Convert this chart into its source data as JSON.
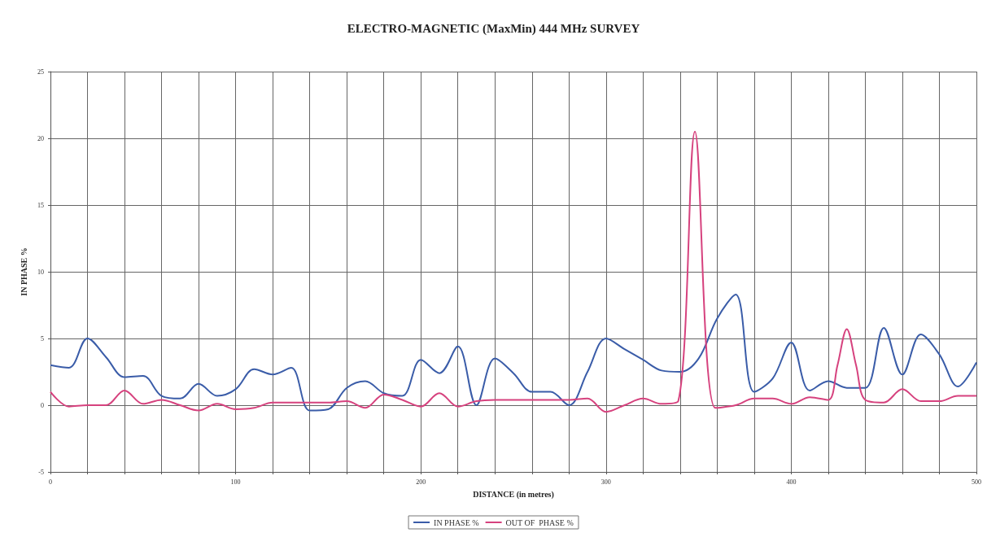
{
  "chart_data": {
    "type": "line",
    "title": "ELECTRO-MAGNETIC (MaxMin) 444 MHz SURVEY",
    "xlabel": "DISTANCE (in metres)",
    "ylabel": "IN PHASE %",
    "x": [
      0,
      10,
      20,
      30,
      40,
      50,
      60,
      70,
      80,
      90,
      100,
      110,
      120,
      130,
      140,
      150,
      160,
      170,
      180,
      190,
      200,
      210,
      220,
      230,
      240,
      250,
      260,
      270,
      280,
      290,
      300,
      310,
      320,
      330,
      340,
      350,
      360,
      370,
      380,
      390,
      400,
      410,
      420,
      430,
      440,
      450,
      460,
      470,
      480,
      490,
      500
    ],
    "series": [
      {
        "name": "IN PHASE %",
        "color": "#3a5ca8",
        "values": [
          3.0,
          2.8,
          5.0,
          3.6,
          2.1,
          2.2,
          0.7,
          0.5,
          1.6,
          0.7,
          1.2,
          2.7,
          2.3,
          2.8,
          -0.4,
          -0.3,
          1.3,
          1.8,
          0.9,
          0.7,
          3.4,
          2.4,
          4.4,
          0.0,
          3.5,
          2.4,
          1.0,
          1.0,
          0.0,
          2.5,
          5.0,
          4.2,
          3.4,
          2.6,
          2.5,
          3.5,
          6.5,
          8.3,
          1.0,
          2.0,
          4.7,
          1.1,
          1.8,
          1.3,
          1.3,
          5.8,
          2.3,
          5.3,
          3.8,
          1.4,
          3.2
        ]
      },
      {
        "name": "OUT OF  PHASE %",
        "color": "#d6427e",
        "x": [
          0,
          10,
          20,
          30,
          40,
          50,
          60,
          70,
          80,
          90,
          100,
          110,
          120,
          130,
          140,
          150,
          160,
          170,
          180,
          190,
          200,
          210,
          220,
          230,
          240,
          250,
          260,
          270,
          280,
          290,
          300,
          310,
          320,
          330,
          339,
          348,
          359,
          370,
          380,
          390,
          400,
          410,
          420,
          425,
          430,
          435,
          440,
          450,
          460,
          470,
          480,
          490,
          500
        ],
        "values": [
          1.0,
          -0.1,
          0.0,
          0.0,
          1.1,
          0.1,
          0.4,
          0.0,
          -0.4,
          0.1,
          -0.3,
          -0.2,
          0.2,
          0.2,
          0.2,
          0.2,
          0.3,
          -0.2,
          0.8,
          0.4,
          -0.1,
          0.9,
          -0.1,
          0.3,
          0.4,
          0.4,
          0.4,
          0.4,
          0.4,
          0.5,
          -0.5,
          0.0,
          0.5,
          0.1,
          0.3,
          20.5,
          -0.2,
          0.0,
          0.5,
          0.5,
          0.1,
          0.6,
          0.4,
          3.0,
          5.7,
          3.0,
          0.4,
          0.2,
          1.2,
          0.3,
          0.3,
          0.7,
          0.7
        ]
      }
    ],
    "xlim": [
      0,
      500
    ],
    "xticks": [
      0,
      {
        "value": 20,
        "label": null
      },
      {
        "value": 40,
        "label": null
      },
      {
        "value": 60,
        "label": null
      },
      {
        "value": 80,
        "label": null
      },
      100,
      {
        "value": 120,
        "label": null
      },
      {
        "value": 140,
        "label": null
      },
      {
        "value": 160,
        "label": null
      },
      {
        "value": 180,
        "label": null
      },
      200,
      {
        "value": 220,
        "label": null
      },
      {
        "value": 240,
        "label": null
      },
      {
        "value": 260,
        "label": null
      },
      {
        "value": 280,
        "label": null
      },
      300,
      {
        "value": 320,
        "label": null
      },
      {
        "value": 340,
        "label": null
      },
      {
        "value": 360,
        "label": null
      },
      {
        "value": 380,
        "label": null
      },
      400,
      {
        "value": 420,
        "label": null
      },
      {
        "value": 440,
        "label": null
      },
      {
        "value": 460,
        "label": null
      },
      {
        "value": 480,
        "label": null
      },
      500
    ],
    "ylim": [
      -5,
      25
    ],
    "yticks": [
      -5,
      0,
      5,
      10,
      15,
      20,
      25
    ],
    "grid": true,
    "legend": "bottom",
    "marker": "none",
    "line_style": "solid"
  }
}
